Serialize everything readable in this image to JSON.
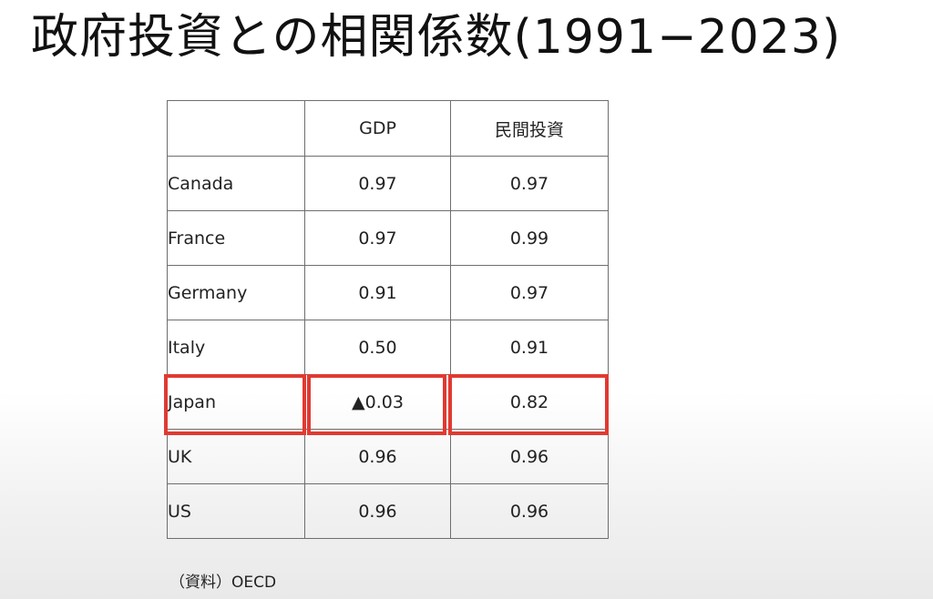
{
  "title": "政府投資との相関係数(1991−2023)",
  "table": {
    "headers": [
      "",
      "GDP",
      "民間投資"
    ],
    "rows": [
      {
        "country": "Canada",
        "gdp": "0.97",
        "private_investment": "0.97"
      },
      {
        "country": "France",
        "gdp": "0.97",
        "private_investment": "0.99"
      },
      {
        "country": "Germany",
        "gdp": "0.91",
        "private_investment": "0.97"
      },
      {
        "country": "Italy",
        "gdp": "0.50",
        "private_investment": "0.91"
      },
      {
        "country": "Japan",
        "gdp": "▲0.03",
        "private_investment": "0.82"
      },
      {
        "country": "UK",
        "gdp": "0.96",
        "private_investment": "0.96"
      },
      {
        "country": "US",
        "gdp": "0.96",
        "private_investment": "0.96"
      }
    ],
    "highlighted_row": "Japan",
    "highlight_color": "#e03a32"
  },
  "source_note": "（資料）OECD"
}
